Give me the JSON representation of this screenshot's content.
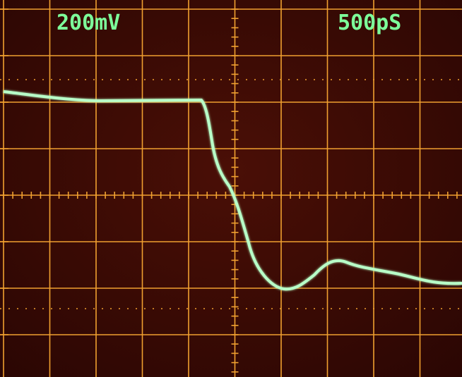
{
  "screen": {
    "volts_per_div": "200mV",
    "time_per_div": "500pS"
  }
}
